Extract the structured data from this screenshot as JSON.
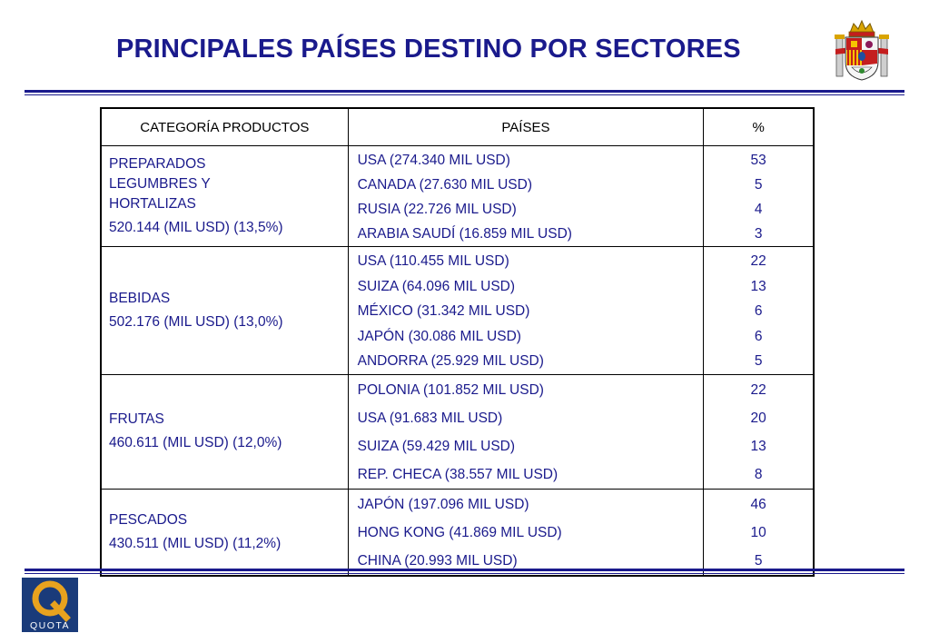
{
  "title": "PRINCIPALES PAÍSES DESTINO POR SECTORES",
  "colors": {
    "accent": "#1a1a8c",
    "logo_bg": "#1a3b7a",
    "logo_q": "#e8a21e"
  },
  "icons": {
    "crest": "spanish-coat-of-arms-icon",
    "logo": "quota-logo-icon"
  },
  "logo_text": "QUOTA",
  "table": {
    "headers": [
      "CATEGORÍA PRODUCTOS",
      "PAÍSES",
      "%"
    ],
    "groups": [
      {
        "category_lines": [
          "PREPARADOS",
          "LEGUMBRES Y",
          "HORTALIZAS"
        ],
        "category_value": "520.144 (MIL USD) (13,5%)",
        "countries": [
          "USA (274.340 MIL USD)",
          "CANADA (27.630 MIL USD)",
          "RUSIA (22.726 MIL USD)",
          "ARABIA SAUDÍ (16.859 MIL USD)"
        ],
        "percents": [
          "53",
          "5",
          "4",
          "3"
        ]
      },
      {
        "category_lines": [
          "BEBIDAS"
        ],
        "category_value": "502.176 (MIL USD) (13,0%)",
        "countries": [
          "USA (110.455 MIL USD)",
          "SUIZA (64.096 MIL USD)",
          "MÉXICO (31.342 MIL USD)",
          "JAPÓN (30.086 MIL USD)",
          "ANDORRA (25.929 MIL USD)"
        ],
        "percents": [
          "22",
          "13",
          "6",
          "6",
          "5"
        ]
      },
      {
        "category_lines": [
          "FRUTAS"
        ],
        "category_value": "460.611 (MIL USD) (12,0%)",
        "countries": [
          "POLONIA (101.852 MIL USD)",
          "USA (91.683 MIL USD)",
          "SUIZA (59.429 MIL USD)",
          "REP. CHECA (38.557 MIL USD)"
        ],
        "percents": [
          "22",
          "20",
          "13",
          "8"
        ]
      },
      {
        "category_lines": [
          "PESCADOS"
        ],
        "category_value": "430.511 (MIL USD) (11,2%)",
        "countries": [
          "JAPÓN (197.096 MIL USD)",
          "HONG KONG (41.869 MIL USD)",
          "CHINA (20.993 MIL USD)"
        ],
        "percents": [
          "46",
          "10",
          "5"
        ]
      }
    ]
  }
}
